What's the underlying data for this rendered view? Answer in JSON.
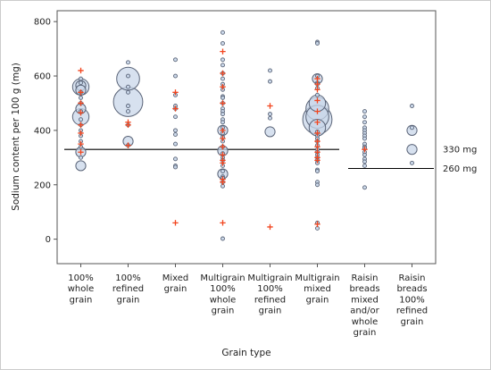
{
  "chart_data": {
    "type": "scatter",
    "subtype": "bubble-plot-with-markers",
    "xlabel": "Grain type",
    "ylabel": "Sodium content per 100 g (mg)",
    "ylim": [
      -90,
      840
    ],
    "yticks": [
      0,
      200,
      400,
      600,
      800
    ],
    "grid": false,
    "legend": "none",
    "colors": {
      "bubble_fill": "#c9d7ea",
      "bubble_stroke": "#5a6478",
      "plus_marker": "#f2451e",
      "reference_line": "#000000",
      "frame": "#555555",
      "plot_background": "#ffffff"
    },
    "categories": [
      [
        "100%",
        "whole",
        "grain"
      ],
      [
        "100%",
        "refined",
        "grain"
      ],
      [
        "Mixed",
        "grain"
      ],
      [
        "Multigrain",
        "100%",
        "whole",
        "grain"
      ],
      [
        "Multigrain",
        "100%",
        "refined",
        "grain"
      ],
      [
        "Multigrain",
        "mixed",
        "grain"
      ],
      [
        "Raisin",
        "breads",
        "mixed",
        "and/or",
        "whole",
        "grain"
      ],
      [
        "Raisin",
        "breads",
        "100%",
        "refined",
        "grain"
      ]
    ],
    "reference_lines": [
      {
        "value": 330,
        "label": "330 mg",
        "from_category": 0,
        "to_category": 5
      },
      {
        "value": 260,
        "label": "260 mg",
        "from_category": 6,
        "to_category": 7
      }
    ],
    "bubbles": [
      {
        "x": 0,
        "points": [
          [
            560,
            3
          ],
          [
            565,
            2
          ],
          [
            548,
            2
          ],
          [
            575,
            1
          ],
          [
            590,
            1
          ],
          [
            540,
            1
          ],
          [
            520,
            1
          ],
          [
            500,
            1
          ],
          [
            480,
            2
          ],
          [
            470,
            1
          ],
          [
            450,
            3
          ],
          [
            440,
            1
          ],
          [
            420,
            1
          ],
          [
            400,
            1
          ],
          [
            380,
            1
          ],
          [
            360,
            1
          ],
          [
            340,
            1
          ],
          [
            320,
            2
          ],
          [
            300,
            1
          ],
          [
            270,
            2
          ]
        ]
      },
      {
        "x": 1,
        "points": [
          [
            590,
            4
          ],
          [
            505,
            5
          ],
          [
            650,
            1
          ],
          [
            600,
            1
          ],
          [
            560,
            1
          ],
          [
            540,
            1
          ],
          [
            490,
            1
          ],
          [
            470,
            1
          ],
          [
            420,
            1
          ],
          [
            360,
            2
          ],
          [
            345,
            1
          ]
        ]
      },
      {
        "x": 2,
        "points": [
          [
            660,
            1
          ],
          [
            600,
            1
          ],
          [
            530,
            1
          ],
          [
            490,
            1
          ],
          [
            480,
            1
          ],
          [
            450,
            1
          ],
          [
            400,
            1
          ],
          [
            385,
            1
          ],
          [
            350,
            1
          ],
          [
            295,
            1
          ],
          [
            270,
            1
          ],
          [
            265,
            1
          ]
        ]
      },
      {
        "x": 3,
        "points": [
          [
            760,
            1
          ],
          [
            720,
            1
          ],
          [
            660,
            1
          ],
          [
            640,
            1
          ],
          [
            610,
            1
          ],
          [
            590,
            1
          ],
          [
            570,
            1
          ],
          [
            550,
            1
          ],
          [
            525,
            1
          ],
          [
            520,
            1
          ],
          [
            500,
            1
          ],
          [
            480,
            1
          ],
          [
            470,
            1
          ],
          [
            460,
            1
          ],
          [
            440,
            1
          ],
          [
            430,
            1
          ],
          [
            410,
            1
          ],
          [
            400,
            2
          ],
          [
            390,
            1
          ],
          [
            375,
            1
          ],
          [
            360,
            1
          ],
          [
            340,
            1
          ],
          [
            325,
            2
          ],
          [
            315,
            1
          ],
          [
            300,
            1
          ],
          [
            290,
            1
          ],
          [
            270,
            1
          ],
          [
            250,
            1
          ],
          [
            240,
            2
          ],
          [
            230,
            1
          ],
          [
            225,
            1
          ],
          [
            210,
            1
          ],
          [
            195,
            1
          ],
          [
            2,
            1
          ]
        ]
      },
      {
        "x": 4,
        "points": [
          [
            620,
            1
          ],
          [
            580,
            1
          ],
          [
            460,
            1
          ],
          [
            445,
            1
          ],
          [
            395,
            2
          ]
        ]
      },
      {
        "x": 5,
        "points": [
          [
            725,
            1
          ],
          [
            720,
            1
          ],
          [
            600,
            1
          ],
          [
            590,
            2
          ],
          [
            575,
            1
          ],
          [
            570,
            1
          ],
          [
            555,
            1
          ],
          [
            530,
            1
          ],
          [
            500,
            3
          ],
          [
            480,
            4
          ],
          [
            450,
            4
          ],
          [
            440,
            5
          ],
          [
            410,
            3
          ],
          [
            395,
            1
          ],
          [
            380,
            1
          ],
          [
            370,
            1
          ],
          [
            360,
            1
          ],
          [
            345,
            1
          ],
          [
            330,
            1
          ],
          [
            320,
            1
          ],
          [
            310,
            1
          ],
          [
            300,
            1
          ],
          [
            290,
            1
          ],
          [
            280,
            1
          ],
          [
            255,
            1
          ],
          [
            250,
            1
          ],
          [
            210,
            1
          ],
          [
            200,
            1
          ],
          [
            60,
            1
          ],
          [
            40,
            1
          ]
        ]
      },
      {
        "x": 6,
        "points": [
          [
            470,
            1
          ],
          [
            450,
            1
          ],
          [
            430,
            1
          ],
          [
            410,
            1
          ],
          [
            400,
            1
          ],
          [
            390,
            1
          ],
          [
            380,
            1
          ],
          [
            370,
            1
          ],
          [
            350,
            1
          ],
          [
            340,
            1
          ],
          [
            335,
            1
          ],
          [
            320,
            1
          ],
          [
            310,
            1
          ],
          [
            295,
            1
          ],
          [
            285,
            1
          ],
          [
            270,
            1
          ],
          [
            190,
            1
          ]
        ]
      },
      {
        "x": 7,
        "points": [
          [
            490,
            1
          ],
          [
            410,
            1
          ],
          [
            400,
            2
          ],
          [
            330,
            2
          ],
          [
            280,
            1
          ]
        ]
      }
    ],
    "plus_markers": [
      {
        "x": 0,
        "values": [
          620,
          540,
          500,
          465,
          420,
          390,
          350,
          320
        ]
      },
      {
        "x": 1,
        "values": [
          430,
          420,
          345
        ]
      },
      {
        "x": 2,
        "values": [
          540,
          480,
          60
        ]
      },
      {
        "x": 3,
        "values": [
          690,
          610,
          560,
          500,
          400,
          370,
          340,
          310,
          290,
          280,
          220,
          210,
          60
        ]
      },
      {
        "x": 4,
        "values": [
          490,
          45
        ]
      },
      {
        "x": 5,
        "values": [
          590,
          570,
          550,
          510,
          470,
          430,
          390,
          360,
          340,
          320,
          300,
          290,
          55
        ]
      },
      {
        "x": 6,
        "values": [
          330
        ]
      },
      {
        "x": 7,
        "values": []
      }
    ]
  }
}
